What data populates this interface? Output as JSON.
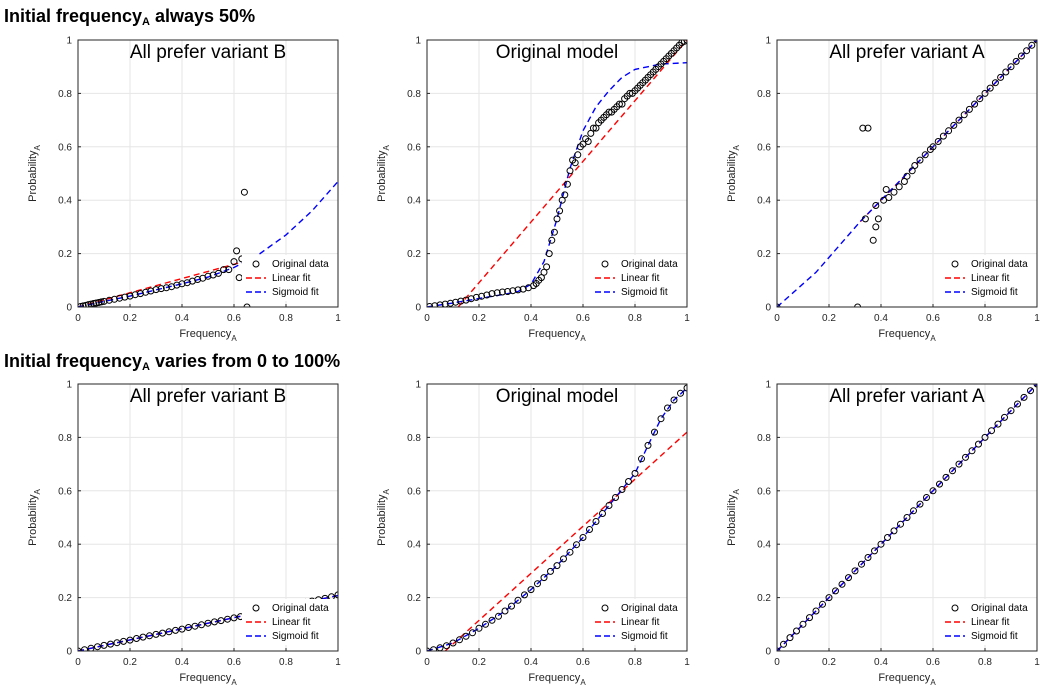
{
  "row_titles": [
    {
      "pre": "Initial frequency",
      "sub": "A",
      "post": " always 50%"
    },
    {
      "pre": "Initial frequency",
      "sub": "A",
      "post": " varies from 0 to 100%"
    }
  ],
  "colors": {
    "original": "#000000",
    "linear": "#ff0000",
    "sigmoid": "#0000ff",
    "grid": "#e6e6e6",
    "axis": "#262626"
  },
  "legend_labels": [
    "Original data",
    "Linear fit",
    "Sigmoid fit"
  ],
  "chart_data": [
    {
      "type": "scatter",
      "title": "All prefer variant B",
      "xlabel": "Frequency",
      "xlabel_sub": "A",
      "ylabel": "Probability",
      "ylabel_sub": "A",
      "xlim": [
        0,
        1
      ],
      "ylim": [
        0,
        1
      ],
      "xticks": [
        0,
        0.2,
        0.4,
        0.6,
        0.8,
        1
      ],
      "yticks": [
        0,
        0.2,
        0.4,
        0.6,
        0.8,
        1
      ],
      "grid": true,
      "legend_position": "bottom-right",
      "series": [
        {
          "name": "Original data",
          "kind": "markers",
          "x": [
            0.01,
            0.02,
            0.03,
            0.04,
            0.05,
            0.06,
            0.07,
            0.08,
            0.09,
            0.1,
            0.12,
            0.14,
            0.16,
            0.18,
            0.2,
            0.22,
            0.24,
            0.26,
            0.28,
            0.3,
            0.32,
            0.34,
            0.36,
            0.38,
            0.4,
            0.42,
            0.44,
            0.46,
            0.48,
            0.5,
            0.52,
            0.54,
            0.56,
            0.58,
            0.6,
            0.61,
            0.62,
            0.63,
            0.64,
            0.65
          ],
          "y": [
            0.002,
            0.004,
            0.006,
            0.009,
            0.011,
            0.013,
            0.015,
            0.017,
            0.019,
            0.021,
            0.025,
            0.029,
            0.033,
            0.037,
            0.041,
            0.046,
            0.05,
            0.055,
            0.06,
            0.065,
            0.069,
            0.072,
            0.076,
            0.082,
            0.087,
            0.091,
            0.097,
            0.103,
            0.108,
            0.115,
            0.12,
            0.126,
            0.14,
            0.14,
            0.17,
            0.21,
            0.11,
            0.18,
            0.43,
            0.0
          ]
        },
        {
          "name": "Linear fit",
          "kind": "line",
          "x": [
            0.0,
            0.62
          ],
          "y": [
            0.0,
            0.165
          ]
        },
        {
          "name": "Sigmoid fit",
          "kind": "line",
          "x": [
            0,
            0.1,
            0.2,
            0.3,
            0.4,
            0.5,
            0.6,
            0.7,
            0.8,
            0.9,
            1.0
          ],
          "y": [
            0.0,
            0.021,
            0.041,
            0.064,
            0.087,
            0.112,
            0.148,
            0.2,
            0.27,
            0.36,
            0.47
          ]
        }
      ]
    },
    {
      "type": "scatter",
      "title": "Original model",
      "xlabel": "Frequency",
      "xlabel_sub": "A",
      "ylabel": "Probability",
      "ylabel_sub": "A",
      "xlim": [
        0,
        1
      ],
      "ylim": [
        0,
        1
      ],
      "xticks": [
        0,
        0.2,
        0.4,
        0.6,
        0.8,
        1
      ],
      "yticks": [
        0,
        0.2,
        0.4,
        0.6,
        0.8,
        1
      ],
      "grid": true,
      "legend_position": "bottom-right",
      "series": [
        {
          "name": "Original data",
          "kind": "markers",
          "x": [
            0.01,
            0.03,
            0.05,
            0.07,
            0.09,
            0.11,
            0.13,
            0.15,
            0.17,
            0.19,
            0.21,
            0.23,
            0.25,
            0.27,
            0.29,
            0.31,
            0.33,
            0.35,
            0.37,
            0.39,
            0.41,
            0.42,
            0.43,
            0.44,
            0.45,
            0.46,
            0.47,
            0.48,
            0.49,
            0.5,
            0.51,
            0.52,
            0.53,
            0.54,
            0.55,
            0.56,
            0.57,
            0.58,
            0.59,
            0.6,
            0.61,
            0.62,
            0.63,
            0.64,
            0.65,
            0.66,
            0.67,
            0.68,
            0.69,
            0.7,
            0.71,
            0.72,
            0.73,
            0.74,
            0.75,
            0.76,
            0.77,
            0.78,
            0.79,
            0.8,
            0.81,
            0.82,
            0.83,
            0.84,
            0.85,
            0.86,
            0.87,
            0.88,
            0.89,
            0.9,
            0.91,
            0.92,
            0.93,
            0.94,
            0.95,
            0.96,
            0.97,
            0.98,
            0.99,
            1.0
          ],
          "y": [
            0.002,
            0.005,
            0.008,
            0.011,
            0.014,
            0.018,
            0.022,
            0.026,
            0.031,
            0.036,
            0.04,
            0.045,
            0.05,
            0.053,
            0.056,
            0.058,
            0.061,
            0.064,
            0.067,
            0.072,
            0.08,
            0.088,
            0.1,
            0.11,
            0.13,
            0.15,
            0.2,
            0.25,
            0.28,
            0.33,
            0.36,
            0.4,
            0.42,
            0.46,
            0.51,
            0.55,
            0.54,
            0.57,
            0.6,
            0.61,
            0.63,
            0.62,
            0.65,
            0.67,
            0.67,
            0.69,
            0.7,
            0.71,
            0.72,
            0.73,
            0.73,
            0.74,
            0.75,
            0.76,
            0.76,
            0.78,
            0.79,
            0.8,
            0.8,
            0.81,
            0.82,
            0.83,
            0.84,
            0.85,
            0.86,
            0.87,
            0.88,
            0.89,
            0.9,
            0.91,
            0.92,
            0.93,
            0.94,
            0.95,
            0.96,
            0.97,
            0.98,
            0.99,
            0.995,
            1.0
          ]
        },
        {
          "name": "Linear fit",
          "kind": "line",
          "x": [
            0.12,
            1.0
          ],
          "y": [
            0.0,
            1.0
          ]
        },
        {
          "name": "Sigmoid fit",
          "kind": "line",
          "x": [
            0,
            0.1,
            0.2,
            0.3,
            0.35,
            0.4,
            0.45,
            0.5,
            0.55,
            0.6,
            0.65,
            0.7,
            0.75,
            0.8,
            0.9,
            1.0
          ],
          "y": [
            0.0,
            0.015,
            0.032,
            0.048,
            0.058,
            0.085,
            0.17,
            0.33,
            0.52,
            0.66,
            0.75,
            0.81,
            0.86,
            0.89,
            0.91,
            0.915
          ]
        }
      ]
    },
    {
      "type": "scatter",
      "title": "All prefer variant A",
      "xlabel": "Frequency",
      "xlabel_sub": "A",
      "ylabel": "Probability",
      "ylabel_sub": "A",
      "xlim": [
        0,
        1
      ],
      "ylim": [
        0,
        1
      ],
      "xticks": [
        0,
        0.2,
        0.4,
        0.6,
        0.8,
        1
      ],
      "yticks": [
        0,
        0.2,
        0.4,
        0.6,
        0.8,
        1
      ],
      "grid": true,
      "legend_position": "bottom-right",
      "series": [
        {
          "name": "Original data",
          "kind": "markers",
          "x": [
            0.0,
            0.31,
            0.33,
            0.34,
            0.35,
            0.37,
            0.38,
            0.38,
            0.39,
            0.41,
            0.42,
            0.43,
            0.45,
            0.47,
            0.49,
            0.5,
            0.52,
            0.53,
            0.55,
            0.57,
            0.59,
            0.6,
            0.62,
            0.64,
            0.66,
            0.68,
            0.7,
            0.72,
            0.74,
            0.76,
            0.78,
            0.8,
            0.82,
            0.84,
            0.86,
            0.88,
            0.9,
            0.92,
            0.94,
            0.96,
            0.98,
            1.0
          ],
          "y": [
            0.0,
            0.0,
            0.67,
            0.33,
            0.67,
            0.25,
            0.3,
            0.38,
            0.33,
            0.4,
            0.44,
            0.41,
            0.43,
            0.45,
            0.47,
            0.49,
            0.51,
            0.53,
            0.55,
            0.57,
            0.59,
            0.6,
            0.62,
            0.64,
            0.66,
            0.68,
            0.7,
            0.72,
            0.74,
            0.76,
            0.78,
            0.8,
            0.82,
            0.84,
            0.86,
            0.88,
            0.9,
            0.92,
            0.94,
            0.96,
            0.98,
            1.0
          ]
        },
        {
          "name": "Linear fit",
          "kind": "line",
          "x": [
            0.32,
            1.0
          ],
          "y": [
            0.32,
            1.0
          ]
        },
        {
          "name": "Sigmoid fit",
          "kind": "line",
          "x": [
            0.0,
            0.15,
            0.32,
            1.0
          ],
          "y": [
            0.0,
            0.13,
            0.32,
            1.0
          ]
        }
      ]
    },
    {
      "type": "scatter",
      "title": "All prefer variant B",
      "xlabel": "Frequency",
      "xlabel_sub": "A",
      "ylabel": "Probability",
      "ylabel_sub": "A",
      "xlim": [
        0,
        1
      ],
      "ylim": [
        0,
        1
      ],
      "xticks": [
        0,
        0.2,
        0.4,
        0.6,
        0.8,
        1
      ],
      "yticks": [
        0,
        0.2,
        0.4,
        0.6,
        0.8,
        1
      ],
      "grid": true,
      "legend_position": "bottom-right",
      "series": [
        {
          "name": "Original data",
          "kind": "markers",
          "x": [
            0.0,
            0.025,
            0.05,
            0.075,
            0.1,
            0.125,
            0.15,
            0.175,
            0.2,
            0.225,
            0.25,
            0.275,
            0.3,
            0.325,
            0.35,
            0.375,
            0.4,
            0.425,
            0.45,
            0.475,
            0.5,
            0.525,
            0.55,
            0.575,
            0.6,
            0.625,
            0.65,
            0.675,
            0.7,
            0.725,
            0.75,
            0.775,
            0.8,
            0.825,
            0.85,
            0.875,
            0.9,
            0.925,
            0.95,
            0.975,
            1.0
          ],
          "y": [
            0.0,
            0.005,
            0.01,
            0.016,
            0.021,
            0.026,
            0.031,
            0.036,
            0.041,
            0.047,
            0.052,
            0.057,
            0.062,
            0.067,
            0.072,
            0.077,
            0.082,
            0.088,
            0.093,
            0.098,
            0.104,
            0.109,
            0.114,
            0.119,
            0.124,
            0.129,
            0.135,
            0.14,
            0.145,
            0.15,
            0.156,
            0.161,
            0.166,
            0.171,
            0.176,
            0.182,
            0.187,
            0.192,
            0.197,
            0.203,
            0.21
          ]
        },
        {
          "name": "Linear fit",
          "kind": "line",
          "x": [
            0.0,
            1.0
          ],
          "y": [
            0.0,
            0.208
          ]
        },
        {
          "name": "Sigmoid fit",
          "kind": "line",
          "x": [
            0.0,
            1.0
          ],
          "y": [
            0.0,
            0.208
          ]
        }
      ]
    },
    {
      "type": "scatter",
      "title": "Original model",
      "xlabel": "Frequency",
      "xlabel_sub": "A",
      "ylabel": "Probability",
      "ylabel_sub": "A",
      "xlim": [
        0,
        1
      ],
      "ylim": [
        0,
        1
      ],
      "xticks": [
        0,
        0.2,
        0.4,
        0.6,
        0.8,
        1
      ],
      "yticks": [
        0,
        0.2,
        0.4,
        0.6,
        0.8,
        1
      ],
      "grid": true,
      "legend_position": "bottom-right",
      "series": [
        {
          "name": "Original data",
          "kind": "markers",
          "x": [
            0.0,
            0.025,
            0.05,
            0.075,
            0.1,
            0.125,
            0.15,
            0.175,
            0.2,
            0.225,
            0.25,
            0.275,
            0.3,
            0.325,
            0.35,
            0.375,
            0.4,
            0.425,
            0.45,
            0.475,
            0.5,
            0.525,
            0.55,
            0.575,
            0.6,
            0.625,
            0.65,
            0.675,
            0.7,
            0.725,
            0.75,
            0.775,
            0.8,
            0.825,
            0.85,
            0.875,
            0.9,
            0.925,
            0.95,
            0.975,
            1.0
          ],
          "y": [
            0.0,
            0.005,
            0.012,
            0.02,
            0.03,
            0.042,
            0.055,
            0.068,
            0.085,
            0.1,
            0.115,
            0.13,
            0.15,
            0.168,
            0.19,
            0.21,
            0.23,
            0.252,
            0.275,
            0.298,
            0.32,
            0.345,
            0.37,
            0.398,
            0.425,
            0.455,
            0.485,
            0.515,
            0.545,
            0.575,
            0.605,
            0.635,
            0.665,
            0.72,
            0.77,
            0.82,
            0.87,
            0.91,
            0.94,
            0.965,
            0.985
          ]
        },
        {
          "name": "Linear fit",
          "kind": "line",
          "x": [
            0.07,
            1.0
          ],
          "y": [
            0.0,
            0.82
          ]
        },
        {
          "name": "Sigmoid fit",
          "kind": "line",
          "x": [
            0.0,
            0.1,
            0.2,
            0.3,
            0.4,
            0.5,
            0.6,
            0.7,
            0.8,
            0.85,
            0.9,
            0.95,
            1.0
          ],
          "y": [
            0.0,
            0.03,
            0.085,
            0.15,
            0.23,
            0.32,
            0.425,
            0.545,
            0.665,
            0.77,
            0.87,
            0.94,
            0.985
          ]
        }
      ]
    },
    {
      "type": "scatter",
      "title": "All prefer variant A",
      "xlabel": "Frequency",
      "xlabel_sub": "A",
      "ylabel": "Probability",
      "ylabel_sub": "A",
      "xlim": [
        0,
        1
      ],
      "ylim": [
        0,
        1
      ],
      "xticks": [
        0,
        0.2,
        0.4,
        0.6,
        0.8,
        1
      ],
      "yticks": [
        0,
        0.2,
        0.4,
        0.6,
        0.8,
        1
      ],
      "grid": true,
      "legend_position": "bottom-right",
      "series": [
        {
          "name": "Original data",
          "kind": "markers",
          "x": [
            0.0,
            0.025,
            0.05,
            0.075,
            0.1,
            0.125,
            0.15,
            0.175,
            0.2,
            0.225,
            0.25,
            0.275,
            0.3,
            0.325,
            0.35,
            0.375,
            0.4,
            0.425,
            0.45,
            0.475,
            0.5,
            0.525,
            0.55,
            0.575,
            0.6,
            0.625,
            0.65,
            0.675,
            0.7,
            0.725,
            0.75,
            0.775,
            0.8,
            0.825,
            0.85,
            0.875,
            0.9,
            0.925,
            0.95,
            0.975,
            1.0
          ],
          "y": [
            0.0,
            0.025,
            0.05,
            0.075,
            0.1,
            0.125,
            0.15,
            0.175,
            0.2,
            0.225,
            0.25,
            0.275,
            0.3,
            0.325,
            0.35,
            0.375,
            0.4,
            0.425,
            0.45,
            0.475,
            0.5,
            0.525,
            0.55,
            0.575,
            0.6,
            0.625,
            0.65,
            0.675,
            0.7,
            0.725,
            0.75,
            0.775,
            0.8,
            0.825,
            0.85,
            0.875,
            0.9,
            0.925,
            0.95,
            0.975,
            1.0
          ]
        },
        {
          "name": "Linear fit",
          "kind": "line",
          "x": [
            0.0,
            1.0
          ],
          "y": [
            0.0,
            1.0
          ]
        },
        {
          "name": "Sigmoid fit",
          "kind": "line",
          "x": [
            0.0,
            1.0
          ],
          "y": [
            0.0,
            1.0
          ]
        }
      ]
    }
  ]
}
